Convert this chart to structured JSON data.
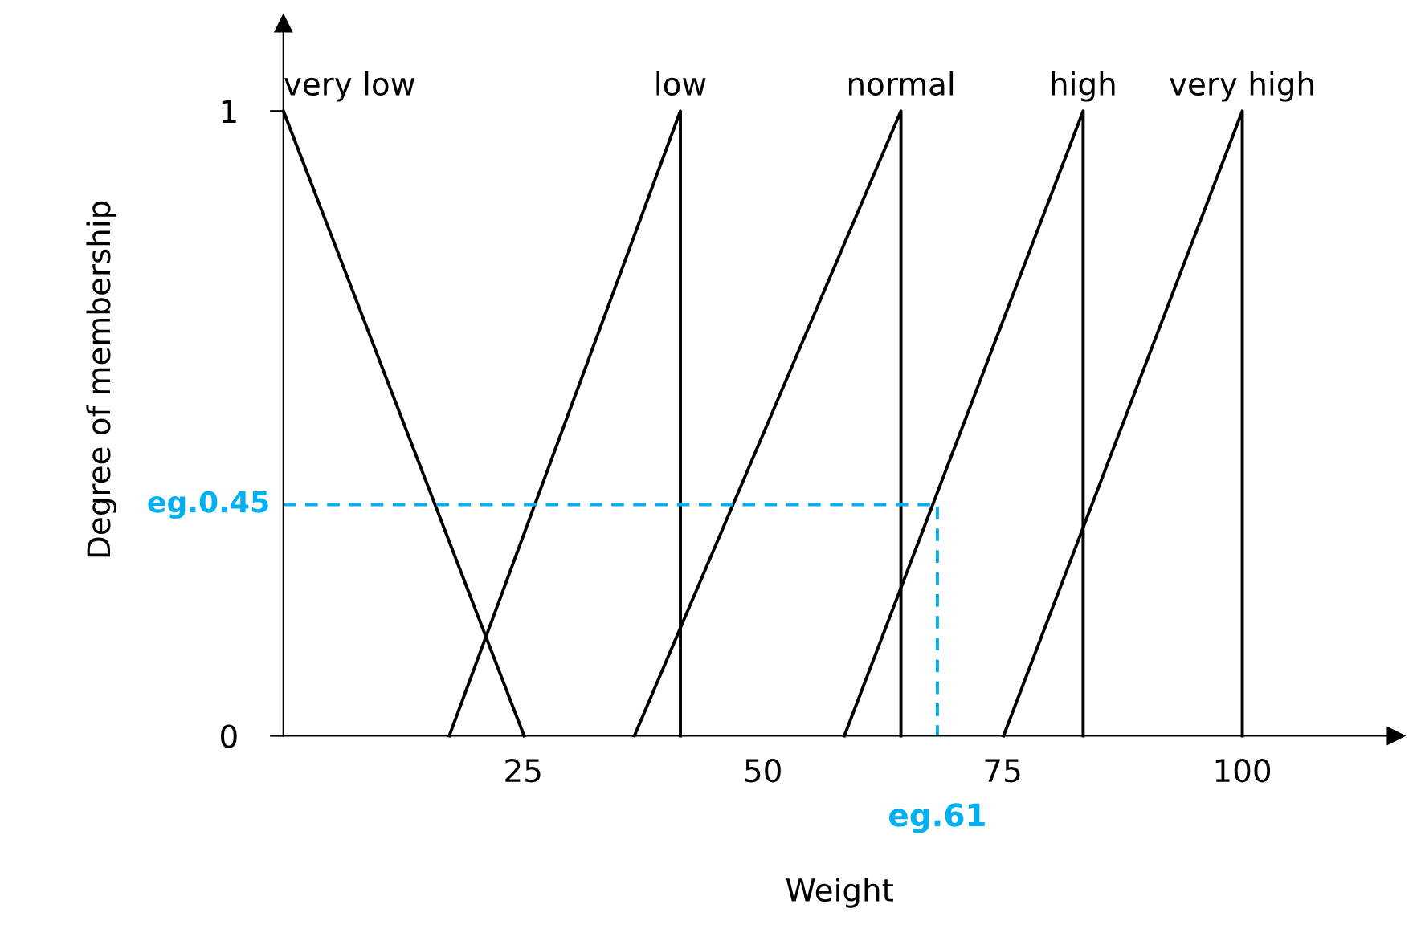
{
  "chart_data": {
    "type": "line",
    "xlabel": "Weight",
    "ylabel": "Degree of membership",
    "xlim": [
      0,
      116
    ],
    "ylim": [
      0,
      1.14
    ],
    "xticks": [
      25,
      50,
      75,
      100
    ],
    "yticks": [
      0,
      1
    ],
    "grid": false,
    "marker": "none",
    "line_style": "solid",
    "series": [
      {
        "name": "very low",
        "color": "#000000",
        "x": [
          0,
          25.1
        ],
        "values": [
          1,
          0
        ]
      },
      {
        "name": "low",
        "color": "#000000",
        "x": [
          17.3,
          41.4,
          41.4
        ],
        "values": [
          0,
          1,
          0
        ]
      },
      {
        "name": "normal",
        "color": "#000000",
        "x": [
          36.6,
          64.4,
          64.4
        ],
        "values": [
          0,
          1,
          0
        ]
      },
      {
        "name": "high",
        "color": "#000000",
        "x": [
          58.5,
          83.4,
          83.4
        ],
        "values": [
          0,
          1,
          0
        ]
      },
      {
        "name": "very high",
        "color": "#000000",
        "x": [
          75.1,
          100,
          100
        ],
        "values": [
          0,
          1,
          0
        ]
      },
      {
        "color": "#00b0f0",
        "line_style": "dashed",
        "x": [
          0,
          68.2,
          68.2
        ],
        "values": [
          0.37,
          0.37,
          0
        ]
      }
    ],
    "annotations": [
      "eg.0.45",
      "eg.61"
    ]
  }
}
